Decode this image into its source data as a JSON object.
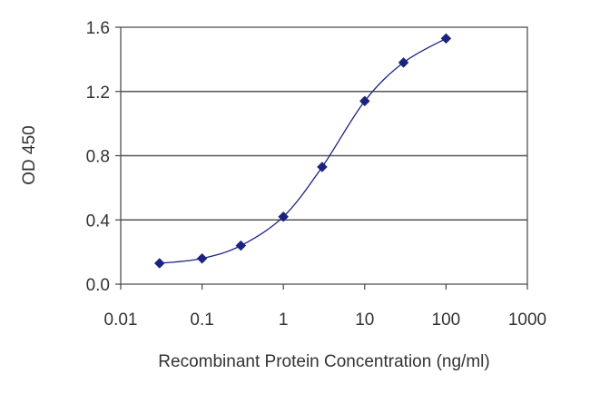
{
  "chart_data": {
    "type": "scatter",
    "title": "",
    "xlabel": "Recombinant Protein Concentration (ng/ml)",
    "ylabel": "OD 450",
    "xscale": "log",
    "xlim": [
      0.01,
      1000
    ],
    "ylim": [
      0.0,
      1.6
    ],
    "x_ticks": [
      "0.01",
      "0.1",
      "1",
      "10",
      "100",
      "1000"
    ],
    "y_ticks": [
      "0.0",
      "0.4",
      "0.8",
      "1.2",
      "1.6"
    ],
    "grid": "horizontal",
    "legend": "none",
    "fit_curve": "sigmoidal",
    "series": [
      {
        "color": "#1a237e",
        "x": [
          0.03,
          0.1,
          0.3,
          1,
          3,
          10,
          30,
          100
        ],
        "y": [
          0.13,
          0.16,
          0.24,
          0.42,
          0.73,
          1.14,
          1.38,
          1.53
        ]
      }
    ]
  }
}
